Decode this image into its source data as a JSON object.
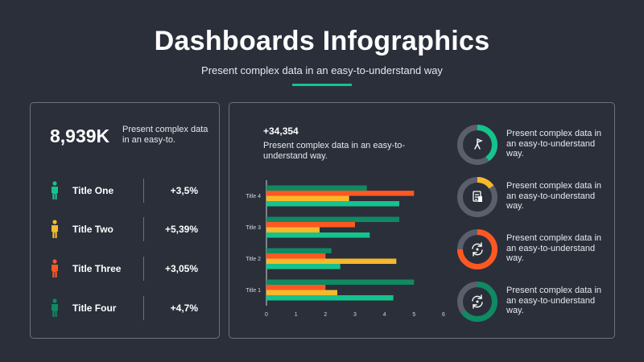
{
  "header": {
    "title": "Dashboards Infographics",
    "subtitle": "Present complex data in an easy-to-understand way"
  },
  "colors": {
    "background": "#2a2f3a",
    "green": "#15c38c",
    "dark_green": "#0f8a62",
    "orange": "#ff5722",
    "yellow": "#f6b92b",
    "gray": "#5a5f6b"
  },
  "left_panel": {
    "big_number": "8,939K",
    "big_desc": "Present complex data in an easy-to.",
    "rows": [
      {
        "label": "Title One",
        "value": "+3,5%",
        "color": "#15c38c",
        "icon": "person-icon"
      },
      {
        "label": "Title Two",
        "value": "+5,39%",
        "color": "#f6b92b",
        "icon": "person-icon"
      },
      {
        "label": "Title Three",
        "value": "+3,05%",
        "color": "#ff5722",
        "icon": "person-icon"
      },
      {
        "label": "Title Four",
        "value": "+4,7%",
        "color": "#0f8a62",
        "icon": "person-icon"
      }
    ]
  },
  "right_panel": {
    "kpi_value": "+34,354",
    "kpi_desc": "Present complex data in an easy-to-understand way.",
    "donuts": [
      {
        "text": "Present complex data in an easy-to-understand way.",
        "percent": 0.4,
        "color": "#15c38c",
        "icon": "flag-icon"
      },
      {
        "text": "Present complex data in an easy-to-understand way.",
        "percent": 0.15,
        "color": "#f6b92b",
        "icon": "document-icon"
      },
      {
        "text": "Present complex data in an easy-to-understand way.",
        "percent": 0.75,
        "color": "#ff5722",
        "icon": "refresh-icon"
      },
      {
        "text": "Present complex data in an easy-to-understand way.",
        "percent": 0.65,
        "color": "#0f8a62",
        "icon": "refresh-icon"
      }
    ]
  },
  "chart_data": {
    "type": "bar",
    "orientation": "horizontal",
    "categories": [
      "Title 1",
      "Title 2",
      "Title 3",
      "Title 4"
    ],
    "series": [
      {
        "color": "#0f8a62",
        "values": [
          5.0,
          2.2,
          4.5,
          3.4
        ]
      },
      {
        "color": "#ff5722",
        "values": [
          2.0,
          2.0,
          3.0,
          5.0
        ]
      },
      {
        "color": "#f6b92b",
        "values": [
          2.4,
          4.4,
          1.8,
          2.8
        ]
      },
      {
        "color": "#15c38c",
        "values": [
          4.3,
          2.5,
          3.5,
          4.5
        ]
      }
    ],
    "xlim": [
      0,
      6
    ],
    "xticks": [
      0,
      1,
      2,
      3,
      4,
      5,
      6
    ],
    "grid": false
  }
}
